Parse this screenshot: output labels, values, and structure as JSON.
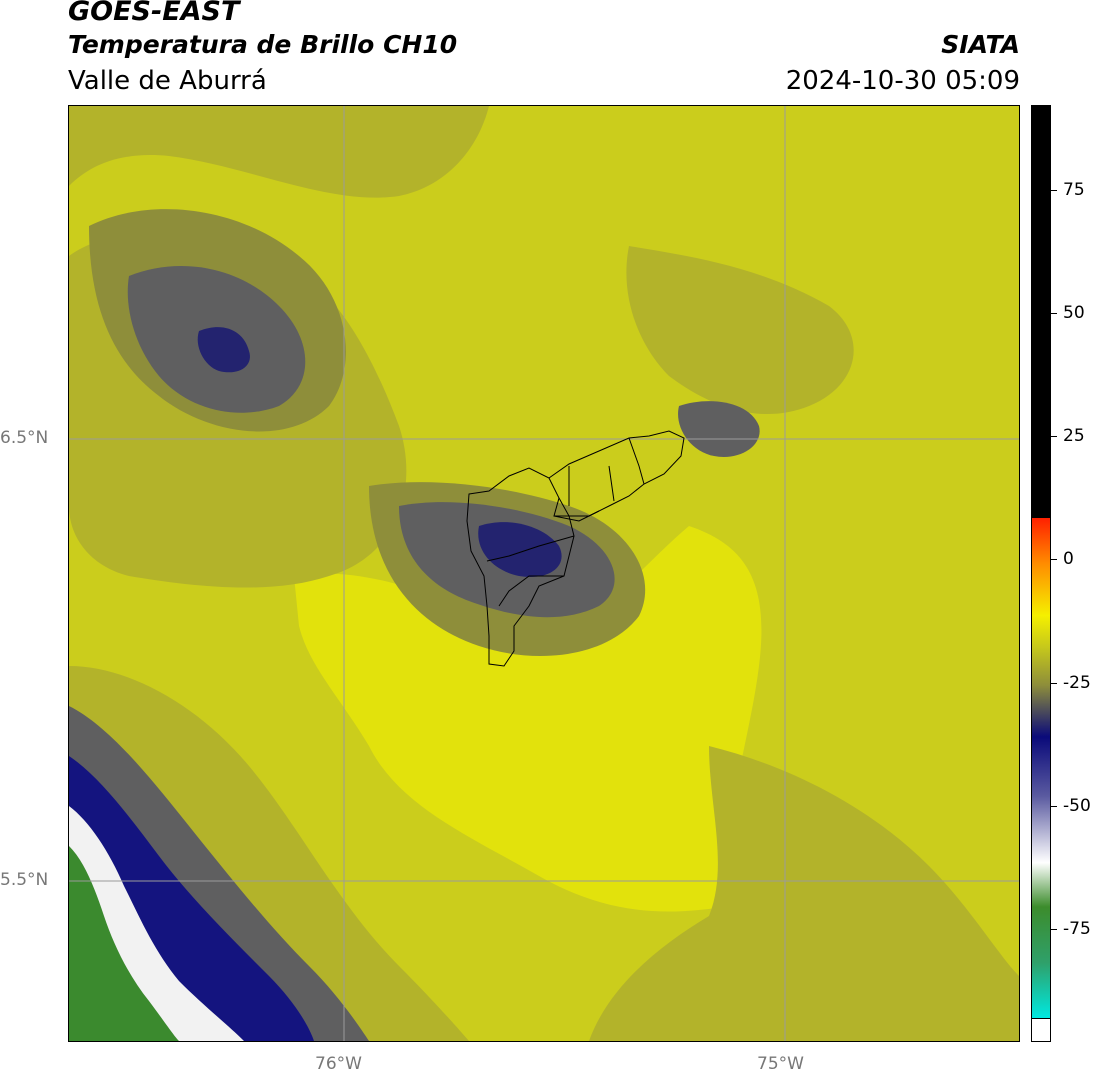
{
  "header": {
    "line1": "GOES-EAST",
    "line2": "Temperatura de Brillo CH10",
    "line3": "Valle de Aburrá",
    "org": "SIATA",
    "datetime": "2024-10-30 05:09"
  },
  "axes": {
    "lat_labels": [
      "6.5°N",
      "5.5°N"
    ],
    "lon_labels": [
      "76°W",
      "75°W"
    ]
  },
  "colorbar": {
    "ticks": [
      "75",
      "50",
      "25",
      "0",
      "-25",
      "-50",
      "-75"
    ],
    "colors": {
      "black": "#000000",
      "red": "#ff2000",
      "orange": "#ff8c00",
      "yellow": "#f5f000",
      "olive": "#c5c71c",
      "navy": "#0a0a7a",
      "white": "#ffffff",
      "green": "#3c8c2c",
      "cyan": "#00e8e0"
    }
  },
  "map_colors": {
    "background": "#cbcd1c",
    "bright_yellow": "#e2e20c",
    "olive_light": "#b3b32a",
    "olive_dark": "#8e8e3a",
    "slate": "#5f5f60",
    "navy": "#23236f",
    "deep_navy": "#14147f",
    "white": "#f2f2f2",
    "green": "#3b8a2e"
  }
}
